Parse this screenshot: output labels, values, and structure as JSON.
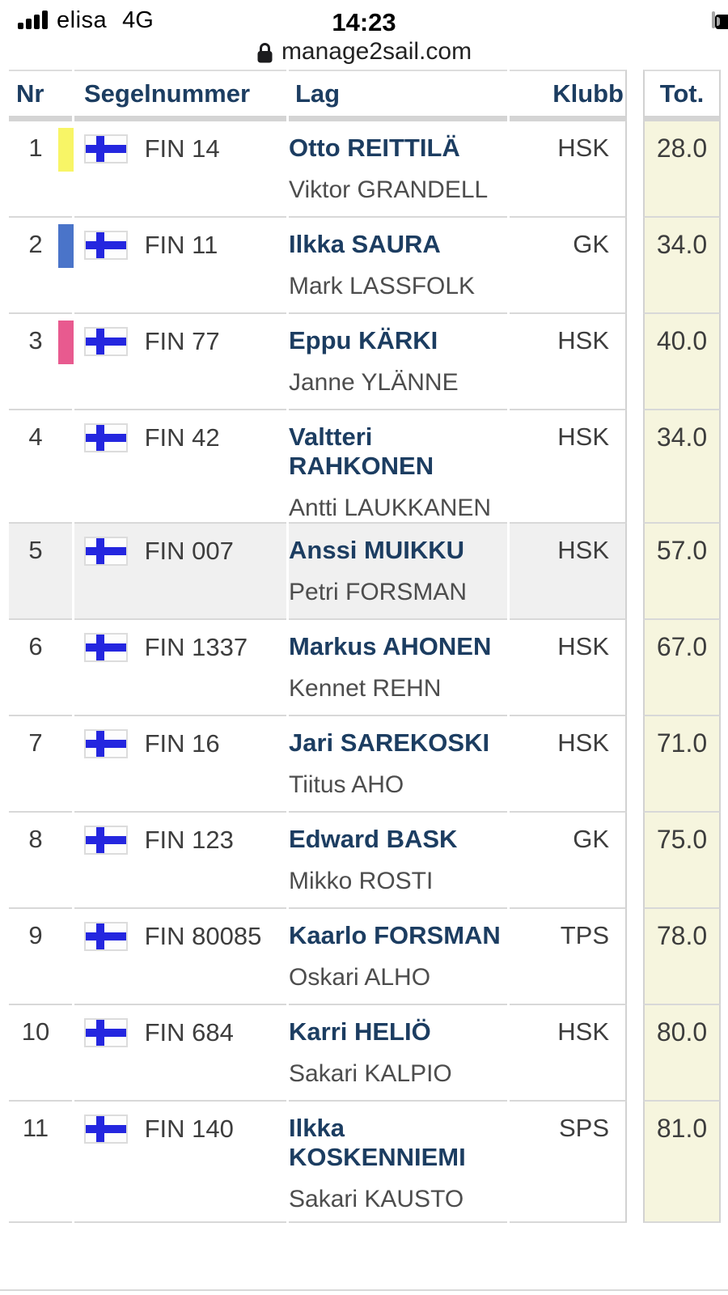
{
  "status_bar": {
    "carrier": "elisa",
    "network": "4G",
    "time": "14:23",
    "signal_bars": 4,
    "battery_level_percent": 80
  },
  "browser": {
    "url": "manage2sail.com",
    "lock_icon": "padlock-secure"
  },
  "results_table": {
    "columns": {
      "nr": "Nr",
      "sail_number": "Segelnummer",
      "team": "Lag",
      "club": "Klubb",
      "total": "Tot."
    },
    "rows": [
      {
        "nr": "1",
        "marker_color": "#f8f566",
        "sail_number": "FIN 14",
        "skipper": "Otto REITTILÄ",
        "crew": "Viktor GRANDELL",
        "club": "HSK",
        "total": "28.0"
      },
      {
        "nr": "2",
        "marker_color": "#4a74c9",
        "sail_number": "FIN 11",
        "skipper": "Ilkka SAURA",
        "crew": "Mark LASSFOLK",
        "club": "GK",
        "total": "34.0"
      },
      {
        "nr": "3",
        "marker_color": "#e85a8f",
        "sail_number": "FIN 77",
        "skipper": "Eppu KÄRKI",
        "crew": "Janne YLÄNNE",
        "club": "HSK",
        "total": "40.0"
      },
      {
        "nr": "4",
        "sail_number": "FIN 42",
        "skipper": "Valtteri RAHKONEN",
        "crew": "Antti LAUKKANEN",
        "club": "HSK",
        "total": "34.0"
      },
      {
        "nr": "5",
        "sail_number": "FIN 007",
        "skipper": "Anssi MUIKKU",
        "crew": "Petri FORSMAN",
        "club": "HSK",
        "total": "57.0",
        "highlighted": true
      },
      {
        "nr": "6",
        "sail_number": "FIN 1337",
        "skipper": "Markus AHONEN",
        "crew": "Kennet REHN",
        "club": "HSK",
        "total": "67.0"
      },
      {
        "nr": "7",
        "sail_number": "FIN 16",
        "skipper": "Jari SAREKOSKI",
        "crew": "Tiitus AHO",
        "club": "HSK",
        "total": "71.0"
      },
      {
        "nr": "8",
        "sail_number": "FIN 123",
        "skipper": "Edward BASK",
        "crew": "Mikko ROSTI",
        "club": "GK",
        "total": "75.0"
      },
      {
        "nr": "9",
        "sail_number": "FIN 80085",
        "skipper": "Kaarlo FORSMAN",
        "crew": "Oskari ALHO",
        "club": "TPS",
        "total": "78.0"
      },
      {
        "nr": "10",
        "sail_number": "FIN 684",
        "skipper": "Karri HELIÖ",
        "crew": "Sakari KALPIO",
        "club": "HSK",
        "total": "80.0"
      },
      {
        "nr": "11",
        "sail_number": "FIN 140",
        "skipper": "Ilkka KOSKENNIEMI",
        "crew": "Sakari KAUSTO",
        "club": "SPS",
        "total": "81.0"
      }
    ]
  },
  "icons": {
    "signal": "cellular-signal-4-bars",
    "battery": "battery-mostly-full",
    "lock": "padlock",
    "row_flag": "finland-flag"
  },
  "colors": {
    "header_text": "#1c3d61",
    "skipper_link_text": "#1c3d61",
    "total_column_bg": "#f6f5de",
    "highlight_row_bg": "#f0f0f0",
    "flag_cross_blue": "#2426df",
    "header_underline": "#d4d4d4",
    "row_separator": "#d8d8d8"
  }
}
